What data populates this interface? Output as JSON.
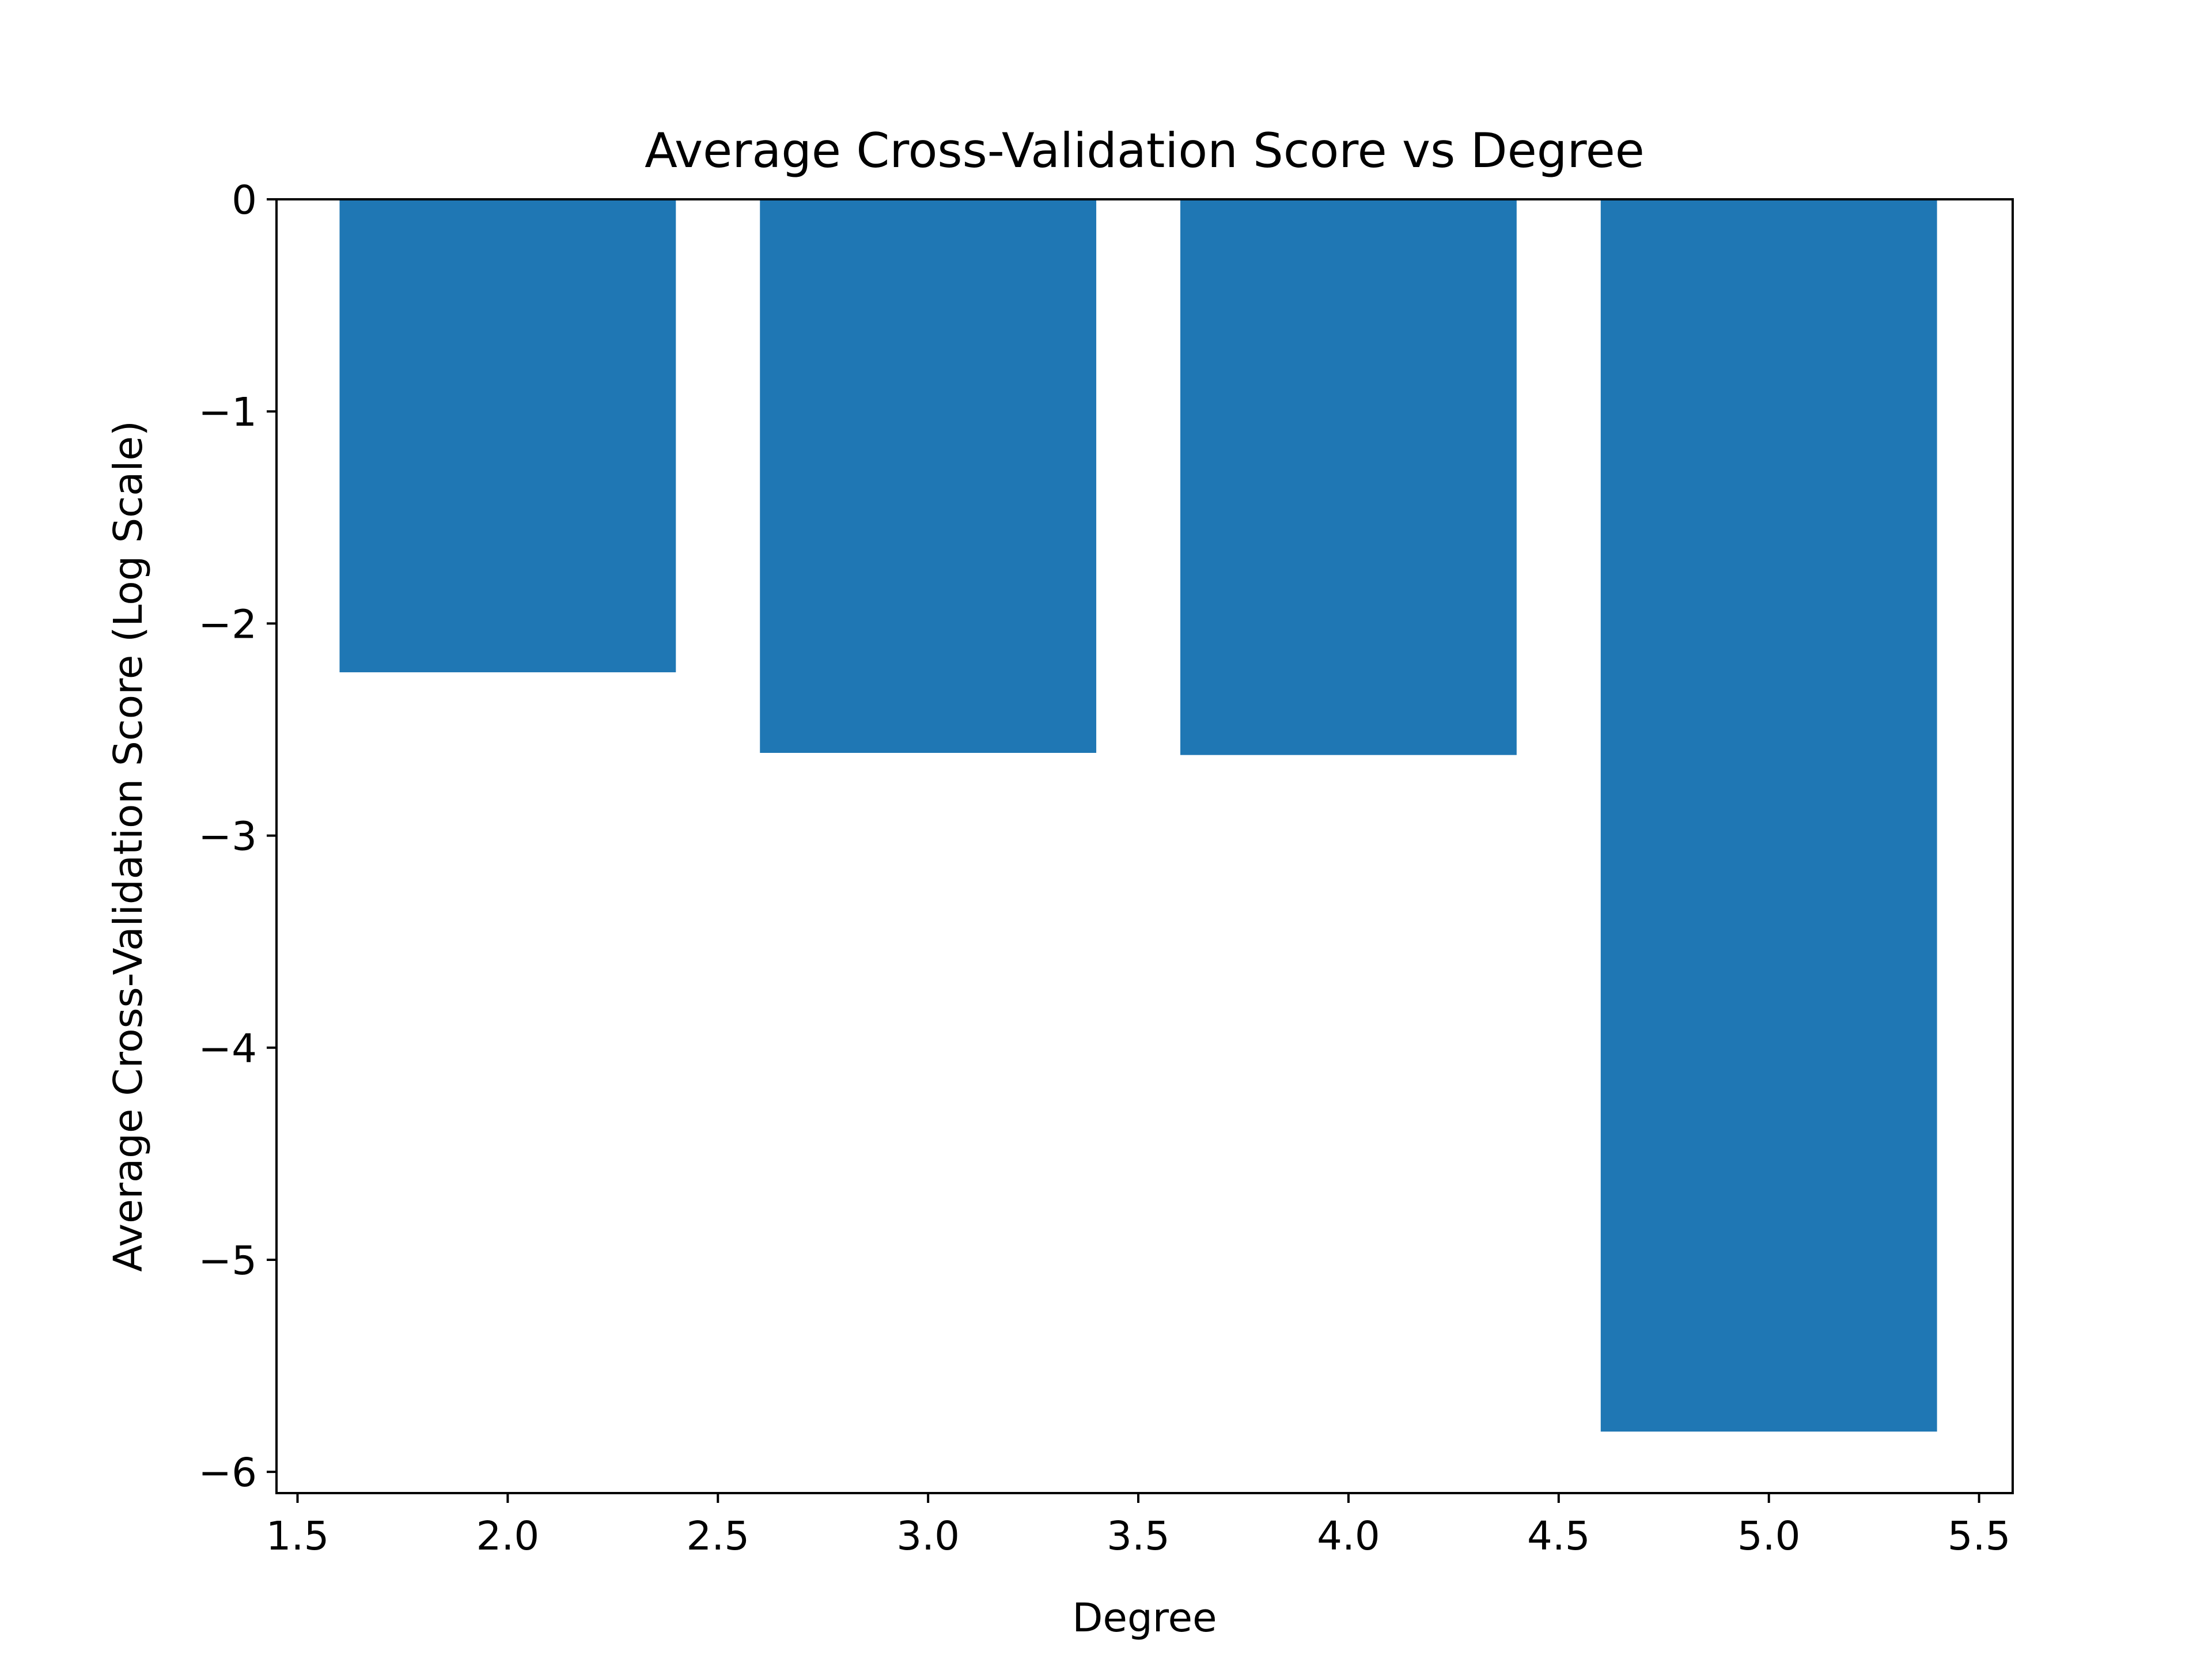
{
  "chart_data": {
    "type": "bar",
    "title": "Average Cross-Validation Score vs Degree",
    "xlabel": "Degree",
    "ylabel": "Average Cross-Validation Score (Log Scale)",
    "x": [
      2,
      3,
      4,
      5
    ],
    "values": [
      -2.23,
      -2.61,
      -2.62,
      -5.81
    ],
    "bar_width": 0.8,
    "xlim": [
      1.45,
      5.58
    ],
    "ylim": [
      -6.1,
      0
    ],
    "xticks": [
      1.5,
      2.0,
      2.5,
      3.0,
      3.5,
      4.0,
      4.5,
      5.0,
      5.5
    ],
    "xtick_labels": [
      "1.5",
      "2.0",
      "2.5",
      "3.0",
      "3.5",
      "4.0",
      "4.5",
      "5.0",
      "5.5"
    ],
    "yticks": [
      0,
      -1,
      -2,
      -3,
      -4,
      -5,
      -6
    ],
    "ytick_labels": [
      "0",
      "−1",
      "−2",
      "−3",
      "−4",
      "−5",
      "−6"
    ],
    "grid": false,
    "legend": "none",
    "colors": {
      "bar": "#1f77b4",
      "axes": "#000000",
      "background": "#ffffff"
    }
  }
}
